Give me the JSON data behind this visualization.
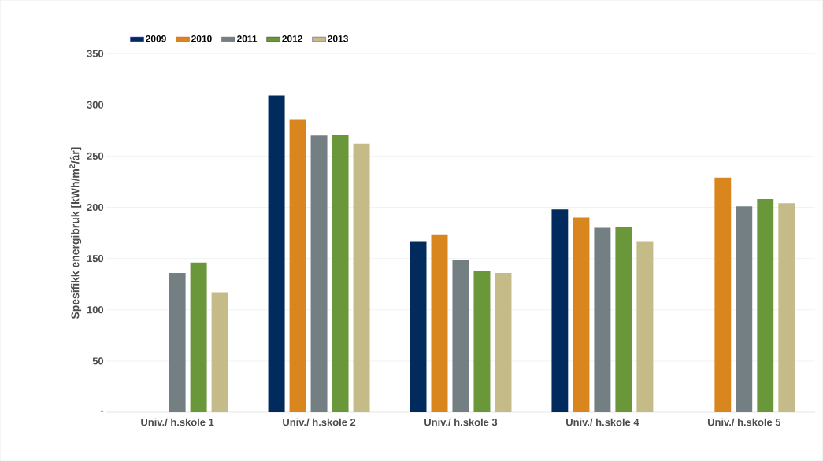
{
  "chart_data": {
    "type": "bar",
    "ylabel": "Spesifikk energibruk [kWh/m$^{2}$/år]",
    "categories": [
      "Univ./ h.skole 1",
      "Univ./ h.skole 2",
      "Univ./ h.skole 3",
      "Univ./ h.skole 4",
      "Univ./ h.skole 5"
    ],
    "series": [
      {
        "name": "2009",
        "color": "#002b5c",
        "values": [
          null,
          309,
          167,
          198,
          null
        ]
      },
      {
        "name": "2010",
        "color": "#d9861e",
        "values": [
          null,
          286,
          173,
          190,
          229
        ]
      },
      {
        "name": "2011",
        "color": "#737f83",
        "values": [
          136,
          270,
          149,
          180,
          201
        ]
      },
      {
        "name": "2012",
        "color": "#6a973a",
        "values": [
          146,
          271,
          138,
          181,
          208
        ]
      },
      {
        "name": "2013",
        "color": "#c5bb88",
        "values": [
          117,
          262,
          136,
          167,
          204
        ]
      }
    ],
    "ylim": [
      0,
      350
    ],
    "yticks": [
      {
        "value": 0,
        "label": "-"
      },
      50,
      100,
      150,
      200,
      250,
      300,
      350
    ],
    "grid": "y",
    "legend": "top left"
  }
}
